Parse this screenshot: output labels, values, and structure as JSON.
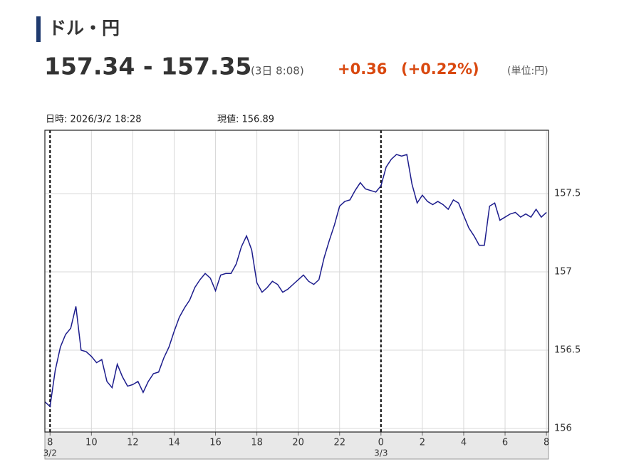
{
  "header": {
    "title": "ドル・円",
    "price": "157.34 - 157.35",
    "time": "(3日 8:08)",
    "change": "+0.36",
    "change_pct": "(+0.22%)",
    "unit": "(単位:円)"
  },
  "chart_data": {
    "type": "line",
    "info": [
      "日時: 2026/3/2  18:28",
      "現値: 156.89"
    ],
    "x": [
      7.75,
      8,
      8.25,
      8.5,
      8.75,
      9,
      9.25,
      9.5,
      9.75,
      10,
      10.25,
      10.5,
      10.75,
      11,
      11.25,
      11.5,
      11.75,
      12,
      12.25,
      12.5,
      12.75,
      13,
      13.25,
      13.5,
      13.75,
      14,
      14.25,
      14.5,
      14.75,
      15,
      15.25,
      15.5,
      15.75,
      16,
      16.25,
      16.5,
      16.75,
      17,
      17.25,
      17.5,
      17.75,
      18,
      18.25,
      18.5,
      18.75,
      19,
      19.25,
      19.5,
      19.75,
      20,
      20.25,
      20.5,
      20.75,
      21,
      21.25,
      21.5,
      21.75,
      22,
      22.25,
      22.5,
      22.75,
      23,
      23.25,
      23.5,
      23.75,
      24,
      24.25,
      24.5,
      24.75,
      25,
      25.25,
      25.5,
      25.75,
      26,
      26.25,
      26.5,
      26.75,
      27,
      27.25,
      27.5,
      27.75,
      28,
      28.25,
      28.5,
      28.75,
      29,
      29.25,
      29.5,
      29.75,
      30,
      30.25,
      30.5,
      30.75,
      31,
      31.25,
      31.5,
      31.75,
      32
    ],
    "series": [
      {
        "name": "ドル・円",
        "color": "#1c1c8c",
        "values": [
          156.17,
          156.14,
          156.37,
          156.52,
          156.6,
          156.64,
          156.78,
          156.5,
          156.49,
          156.46,
          156.42,
          156.44,
          156.3,
          156.26,
          156.41,
          156.33,
          156.27,
          156.28,
          156.3,
          156.23,
          156.3,
          156.35,
          156.36,
          156.45,
          156.52,
          156.62,
          156.71,
          156.77,
          156.82,
          156.9,
          156.95,
          156.99,
          156.96,
          156.88,
          156.98,
          156.99,
          156.99,
          157.05,
          157.16,
          157.23,
          157.14,
          156.93,
          156.87,
          156.9,
          156.94,
          156.92,
          156.87,
          156.89,
          156.92,
          156.95,
          156.98,
          156.94,
          156.92,
          156.95,
          157.09,
          157.2,
          157.3,
          157.42,
          157.45,
          157.46,
          157.52,
          157.57,
          157.53,
          157.52,
          157.51,
          157.55,
          157.67,
          157.72,
          157.75,
          157.74,
          157.75,
          157.56,
          157.44,
          157.49,
          157.45,
          157.43,
          157.45,
          157.43,
          157.4,
          157.46,
          157.44,
          157.36,
          157.28,
          157.23,
          157.17,
          157.17,
          157.42,
          157.44,
          157.33,
          157.35,
          157.37,
          157.38,
          157.35,
          157.37,
          157.35,
          157.4,
          157.35,
          157.38
        ]
      }
    ],
    "xlim": [
      7.75,
      32.1
    ],
    "xticks": [
      8,
      10,
      12,
      14,
      16,
      18,
      20,
      22,
      {
        "value": 24,
        "label": "0"
      },
      {
        "value": 26,
        "label": "2"
      },
      {
        "value": 28,
        "label": "4"
      },
      {
        "value": 30,
        "label": "6"
      },
      {
        "value": 32,
        "label": "8"
      }
    ],
    "date_labels": [
      {
        "x": 8,
        "label": "3/2"
      },
      {
        "x": 24,
        "label": "3/3"
      }
    ],
    "ylim": [
      155.977,
      157.905
    ],
    "yticks": [
      156,
      156.5,
      157,
      157.5
    ],
    "grid": true
  }
}
